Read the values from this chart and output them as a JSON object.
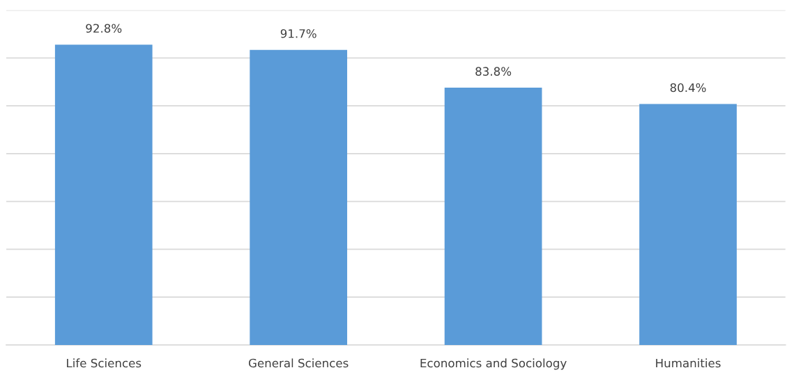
{
  "chart_data": {
    "type": "bar",
    "categories": [
      "Life Sciences",
      "General Sciences",
      "Economics and Sociology",
      "Humanities"
    ],
    "values": [
      92.8,
      91.7,
      83.8,
      80.4
    ],
    "value_labels": [
      "92.8%",
      "91.7%",
      "83.8%",
      "80.4%"
    ],
    "color": "#5a9bd8",
    "ylim": [
      30,
      100
    ],
    "yticks": [
      {
        "value": 30,
        "label": null
      },
      {
        "value": 40,
        "label": null
      },
      {
        "value": 50,
        "label": null
      },
      {
        "value": 60,
        "label": null
      },
      {
        "value": 70,
        "label": null
      },
      {
        "value": 80,
        "label": null
      },
      {
        "value": 90,
        "label": null
      },
      {
        "value": 100,
        "label": null
      }
    ],
    "tick_labels": "x",
    "grid": "y"
  }
}
